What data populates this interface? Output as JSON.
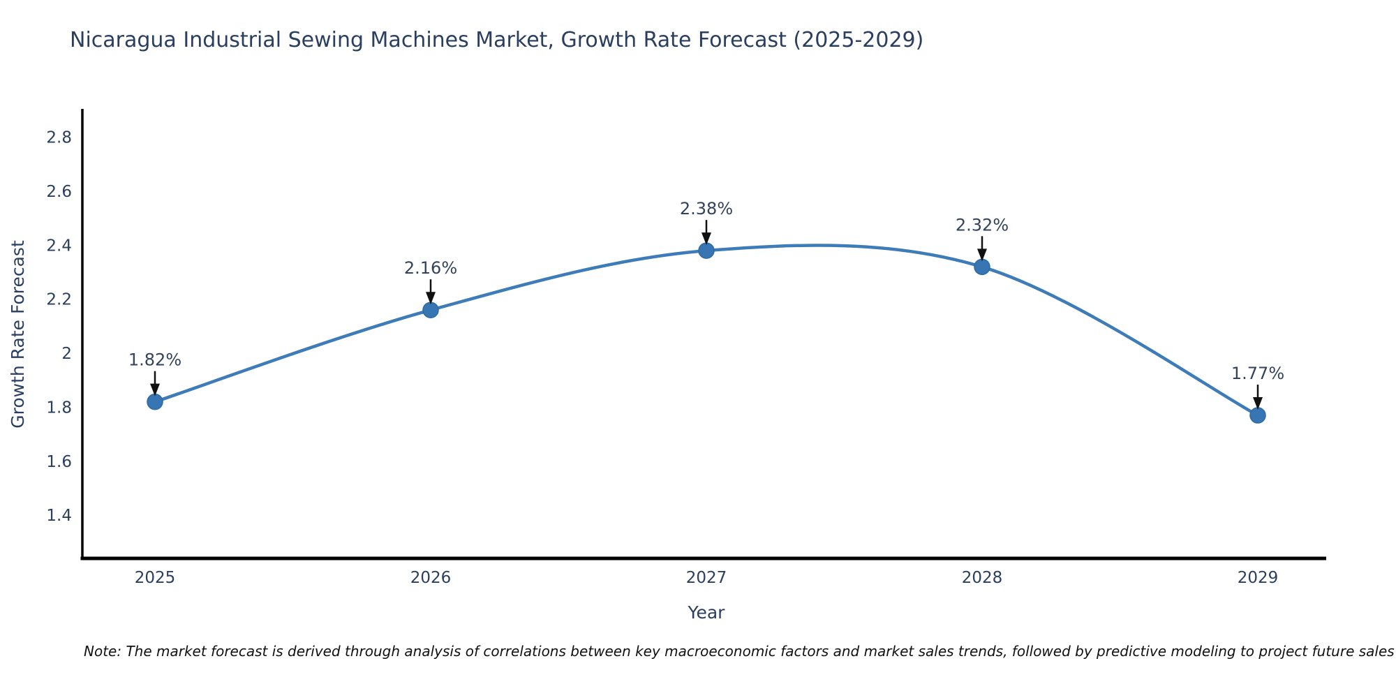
{
  "chart_data": {
    "type": "line",
    "title": "Nicaragua Industrial Sewing Machines Market, Growth Rate Forecast (2025-2029)",
    "xlabel": "Year",
    "ylabel": "Growth Rate Forecast",
    "categories": [
      "2025",
      "2026",
      "2027",
      "2028",
      "2029"
    ],
    "values": [
      1.82,
      2.16,
      2.38,
      2.32,
      1.77
    ],
    "point_labels": [
      "1.82%",
      "2.16%",
      "2.38%",
      "2.32%",
      "1.77%"
    ],
    "ytick_values": [
      2.8,
      2.6,
      2.4,
      2.2,
      2.0,
      1.8,
      1.6,
      1.4
    ],
    "ytick_labels": [
      "2.8",
      "2.6",
      "2.4",
      "2.2",
      "2",
      "1.8",
      "1.6",
      "1.4"
    ],
    "ylim": [
      1.24,
      2.9
    ],
    "line_shape": "spline",
    "grid": false,
    "legend_position": "none",
    "colors": {
      "line": "#3d7cb8",
      "marker_fill": "#3876b3",
      "marker_stroke": "#2d6aa8",
      "axis_line": "#000000",
      "title_text": "#2a3f5f",
      "tick_text": "#2a3f5f",
      "axis_title_text": "#2a3f5f",
      "annotation_text": "#33435c",
      "annotation_arrow": "#111111",
      "background": "#ffffff"
    }
  },
  "note": "Note: The market forecast is derived through analysis of correlations between key macroeconomic factors and market sales trends, followed by predictive modeling to project future sales"
}
